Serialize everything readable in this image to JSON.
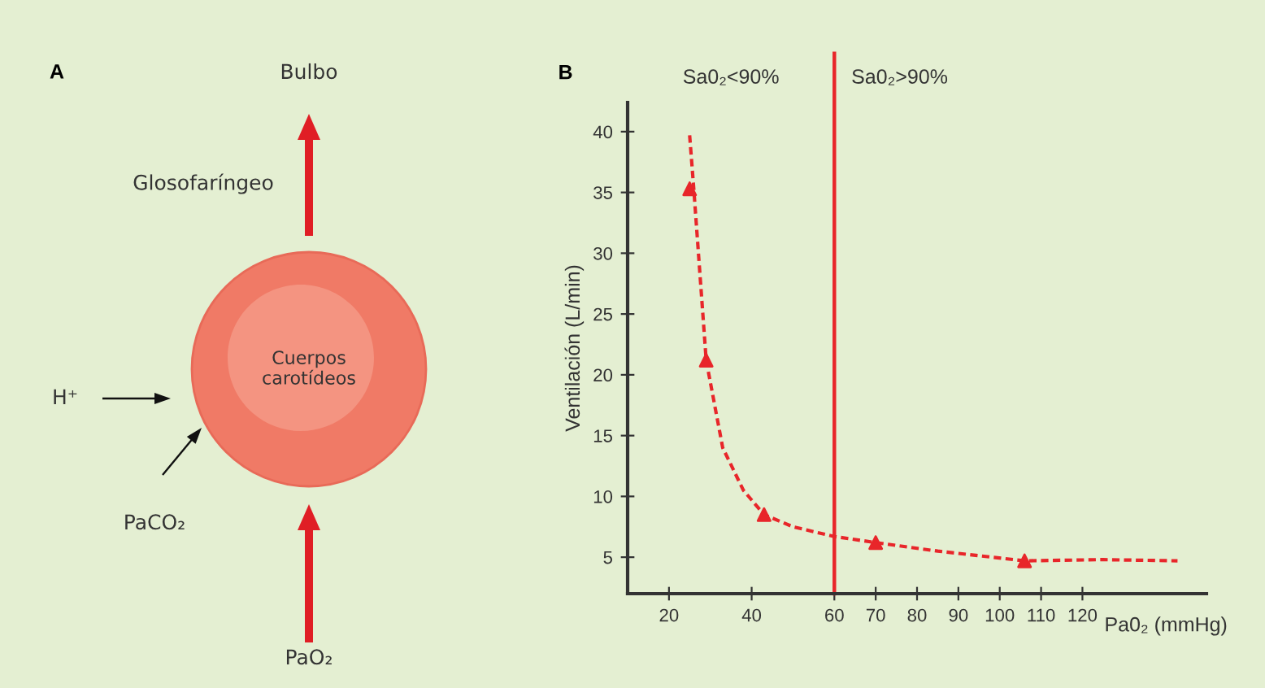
{
  "chart_data": [
    {
      "type": "other",
      "title": "A",
      "annotations": [
        "Bulbo",
        "Glosofaríngeo",
        "Cuerpos\ncarotídeos",
        "H⁺",
        "PaCO₂",
        "PaO₂"
      ]
    },
    {
      "type": "line",
      "title": "B",
      "xlabel": "Pa0₂ (mmHg)",
      "ylabel": "Ventilación (L/min)",
      "annotations": [
        "Sa0₂<90%",
        "Sa0₂>90%"
      ],
      "xlim": [
        10,
        150
      ],
      "ylim": [
        2,
        42.4
      ],
      "xticks": [
        20,
        40,
        60,
        70,
        80,
        90,
        100,
        110,
        120
      ],
      "yticks": [
        5,
        10,
        15,
        20,
        25,
        30,
        35,
        40
      ],
      "series": [
        {
          "type": "line",
          "color": "#e8262a",
          "line_style": "dashed",
          "marker": "none",
          "x": [
            25,
            26,
            29,
            33,
            38,
            43,
            50,
            60,
            70,
            85,
            106,
            125,
            143
          ],
          "values": [
            39.7,
            35.3,
            21.2,
            14,
            10.5,
            8.5,
            7.5,
            6.7,
            6.2,
            5.5,
            4.7,
            4.8,
            4.7
          ]
        },
        {
          "type": "scatter",
          "color": "#e8262a",
          "marker": "triangle",
          "x": [
            25,
            29,
            43,
            70,
            106
          ],
          "values": [
            35.3,
            21.2,
            8.5,
            6.2,
            4.7
          ]
        }
      ],
      "ref_lines": [
        {
          "axis": "x",
          "value": 60,
          "color": "#e8262a",
          "line_style": "solid"
        }
      ],
      "grid": false,
      "legend": false
    }
  ]
}
